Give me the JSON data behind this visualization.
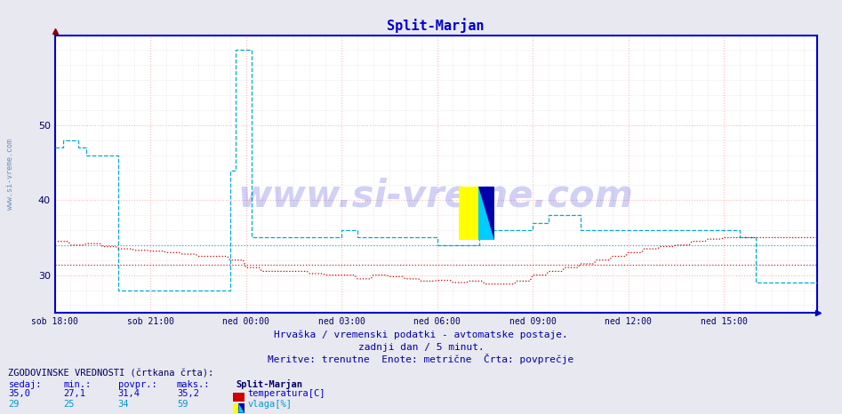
{
  "title": "Split-Marjan",
  "title_color": "#0000cc",
  "bg_color": "#e8e8f0",
  "plot_bg_color": "#ffffff",
  "x_labels": [
    "sob 18:00",
    "sob 21:00",
    "ned 00:00",
    "ned 03:00",
    "ned 06:00",
    "ned 09:00",
    "ned 12:00",
    "ned 15:00"
  ],
  "x_ticks_pos": [
    0,
    36,
    72,
    108,
    144,
    180,
    216,
    252
  ],
  "total_points": 288,
  "ylim": [
    25,
    62
  ],
  "yticks": [
    30,
    40,
    50
  ],
  "grid_color_major": "#ffbbbb",
  "grid_color_minor": "#ddddee",
  "watermark_text": "www.si-vreme.com",
  "footer_line1": "Hrvaška / vremenski podatki - avtomatske postaje.",
  "footer_line2": "zadnji dan / 5 minut.",
  "footer_line3": "Meritve: trenutne  Enote: metrične  Črta: povprečje",
  "footer_color": "#0000aa",
  "legend_title": "ZGODOVINSKE VREDNOSTI (črtkana črta):",
  "legend_col1": "sedaj:",
  "legend_col2": "min.:",
  "legend_col3": "povpr.:",
  "legend_col4": "maks.:",
  "legend_col5": "Split-Marjan",
  "temp_sedaj": "35,0",
  "temp_min": "27,1",
  "temp_povpr": "31,4",
  "temp_maks": "35,2",
  "temp_label": "temperatura[C]",
  "temp_color": "#cc0000",
  "temp_avg": 31.4,
  "vlaga_sedaj": "29",
  "vlaga_min": "25",
  "vlaga_povpr": "34",
  "vlaga_maks": "59",
  "vlaga_label": "vlaga[%]",
  "vlaga_color": "#00aacc",
  "vlaga_avg": 34.0,
  "axis_color": "#0000cc",
  "tick_color": "#000066",
  "side_text": "www.si-vreme.com"
}
